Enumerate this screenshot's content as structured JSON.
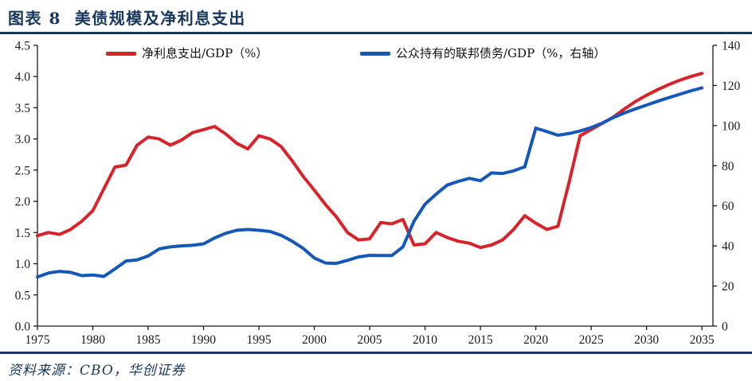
{
  "header": {
    "title": "图表 8  美债规模及净利息支出"
  },
  "footer": {
    "source": "资料来源：CBO，华创证券"
  },
  "colors": {
    "navy": "#17375e",
    "red": "#d8232a",
    "blue": "#1658b8",
    "axis": "#1a1a1a"
  },
  "chart_data": {
    "type": "line",
    "title": "美债规模及净利息支出",
    "legend_position": "top",
    "grid": false,
    "years": [
      1975,
      1976,
      1977,
      1978,
      1979,
      1980,
      1981,
      1982,
      1983,
      1984,
      1985,
      1986,
      1987,
      1988,
      1989,
      1990,
      1991,
      1992,
      1993,
      1994,
      1995,
      1996,
      1997,
      1998,
      1999,
      2000,
      2001,
      2002,
      2003,
      2004,
      2005,
      2006,
      2007,
      2008,
      2009,
      2010,
      2011,
      2012,
      2013,
      2014,
      2015,
      2016,
      2017,
      2018,
      2019,
      2020,
      2021,
      2022,
      2023,
      2024,
      2025,
      2026,
      2027,
      2028,
      2029,
      2030,
      2031,
      2032,
      2033,
      2034,
      2035
    ],
    "series": [
      {
        "name": "净利息支出/GDP（%）",
        "axis": "left",
        "color": "#d8232a",
        "values": [
          1.45,
          1.5,
          1.47,
          1.55,
          1.68,
          1.85,
          2.2,
          2.55,
          2.58,
          2.9,
          3.03,
          3.0,
          2.9,
          2.98,
          3.1,
          3.15,
          3.2,
          3.08,
          2.93,
          2.84,
          3.05,
          3.0,
          2.88,
          2.65,
          2.4,
          2.18,
          1.95,
          1.75,
          1.5,
          1.38,
          1.4,
          1.66,
          1.64,
          1.71,
          1.3,
          1.32,
          1.5,
          1.42,
          1.36,
          1.33,
          1.26,
          1.3,
          1.38,
          1.55,
          1.77,
          1.65,
          1.55,
          1.6,
          2.3,
          3.05,
          3.15,
          3.25,
          3.35,
          3.48,
          3.6,
          3.7,
          3.79,
          3.87,
          3.94,
          4.0,
          4.05
        ]
      },
      {
        "name": "公众持有的联邦债务/GDP（%，右轴）",
        "axis": "right",
        "color": "#1658b8",
        "values": [
          24.5,
          26.5,
          27.3,
          26.8,
          25.2,
          25.5,
          24.8,
          28.5,
          32.5,
          33.0,
          35.0,
          38.5,
          39.5,
          40.0,
          40.3,
          41.0,
          44.0,
          46.3,
          47.8,
          48.2,
          47.8,
          47.2,
          45.3,
          42.3,
          38.8,
          34.0,
          31.5,
          31.3,
          32.8,
          34.5,
          35.3,
          35.2,
          35.2,
          39.5,
          52.3,
          60.8,
          65.8,
          70.3,
          72.2,
          73.7,
          72.5,
          76.4,
          76.1,
          77.4,
          79.4,
          98.7,
          97.0,
          95.2,
          96.0,
          97.3,
          99.0,
          101.2,
          104.0,
          106.3,
          108.3,
          110.2,
          112.1,
          113.9,
          115.6,
          117.3,
          118.8
        ]
      }
    ],
    "left_axis": {
      "min": 0,
      "max": 4.5,
      "ticks": [
        "0.0",
        "0.5",
        "1.0",
        "1.5",
        "2.0",
        "2.5",
        "3.0",
        "3.5",
        "4.0",
        "4.5"
      ]
    },
    "right_axis": {
      "min": 0,
      "max": 140,
      "ticks": [
        "0",
        "20",
        "40",
        "60",
        "80",
        "100",
        "120",
        "140"
      ]
    },
    "x_axis": {
      "min": 1975,
      "max": 2036,
      "ticks": [
        "1975",
        "1980",
        "1985",
        "1990",
        "1995",
        "2000",
        "2005",
        "2010",
        "2015",
        "2020",
        "2025",
        "2030",
        "2035"
      ]
    }
  }
}
